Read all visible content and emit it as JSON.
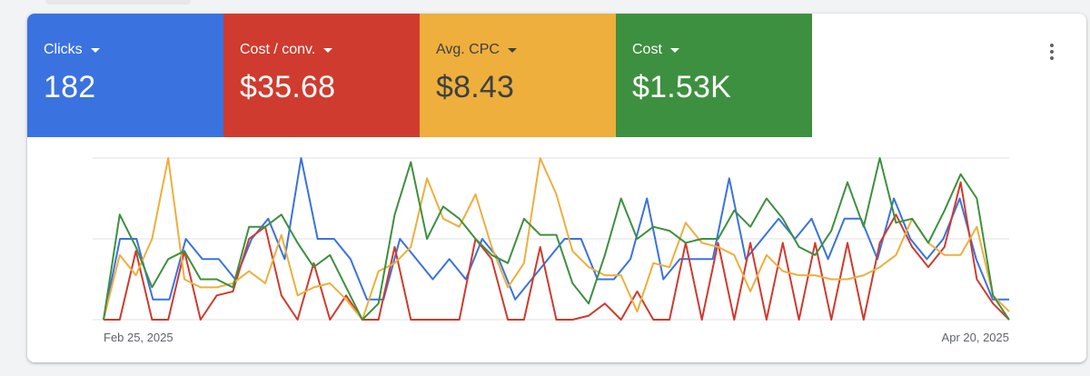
{
  "tiles": [
    {
      "label": "Clicks",
      "value": "182",
      "color": "#3a72e0"
    },
    {
      "label": "Cost / conv.",
      "value": "$35.68",
      "color": "#cf3b2e"
    },
    {
      "label": "Avg. CPC",
      "value": "$8.43",
      "color": "#eeaf3c"
    },
    {
      "label": "Cost",
      "value": "$1.53K",
      "color": "#3d903f"
    }
  ],
  "chart_data": {
    "type": "line",
    "x_start_label": "Feb 25, 2025",
    "x_end_label": "Apr 20, 2025",
    "grid": true,
    "ylim": [
      0,
      4
    ],
    "series": [
      {
        "color": "#3a72e0",
        "values": [
          0,
          2,
          2,
          0.5,
          0.5,
          2,
          1.5,
          1.5,
          1,
          2,
          2.5,
          1.5,
          4,
          2,
          2,
          1.5,
          0.5,
          0.5,
          2,
          1.5,
          1,
          1.5,
          1,
          2,
          1.5,
          0.5,
          1,
          1.5,
          2,
          2,
          1,
          1,
          1.5,
          3,
          1,
          1.5,
          1.5,
          1.5,
          3.5,
          1.5,
          2,
          2.5,
          2,
          2.5,
          1.5,
          2.5,
          2.5,
          1.5,
          3,
          2,
          1.5,
          2,
          3,
          1.5,
          0.5,
          0.5
        ]
      },
      {
        "color": "#cf3b2e",
        "values": [
          0,
          0,
          1.7,
          0,
          0,
          1.7,
          0,
          0.6,
          0.7,
          2,
          2.3,
          0.6,
          0,
          1.4,
          0,
          0.6,
          0,
          0,
          1.8,
          0,
          0,
          0,
          0,
          2,
          1.5,
          0,
          0,
          1.8,
          0,
          0,
          0.1,
          0.4,
          0,
          0.7,
          0,
          0,
          1.9,
          0,
          1.9,
          0,
          1.9,
          0,
          1.9,
          0,
          1.9,
          0,
          1.9,
          0,
          1.9,
          2.6,
          1.8,
          1.3,
          1.8,
          3.4,
          1,
          0.4,
          0
        ]
      },
      {
        "color": "#eeaf3c",
        "values": [
          0,
          1.6,
          1.1,
          2,
          4,
          1,
          0.8,
          0.8,
          0.9,
          1.2,
          0.9,
          2.1,
          0.6,
          0.8,
          0.9,
          0.5,
          0,
          1.2,
          1.4,
          1.8,
          3.5,
          2.5,
          2.3,
          3.1,
          1.8,
          0.8,
          1.4,
          4,
          3.1,
          1.7,
          1.3,
          1.1,
          1.1,
          0.2,
          1.4,
          1.3,
          2.4,
          1.9,
          1.8,
          1.6,
          0.7,
          1.6,
          1.2,
          1.1,
          1.1,
          1,
          1,
          1.1,
          1.3,
          1.6,
          2.5,
          1.9,
          1.6,
          1.6,
          2.3,
          0.6,
          0.2
        ]
      },
      {
        "color": "#3d903f",
        "values": [
          0,
          2.6,
          1.8,
          0.8,
          1.5,
          1.7,
          1,
          1,
          0.8,
          2.3,
          2.3,
          2.6,
          1.9,
          1.3,
          1.6,
          0.8,
          0,
          0.4,
          2.6,
          3.9,
          2,
          2.8,
          2.5,
          2.0,
          1.6,
          1.4,
          2.5,
          2.1,
          2.1,
          0.9,
          0.4,
          1.6,
          3,
          2,
          2.3,
          2.2,
          1.9,
          2,
          2,
          2.7,
          2.3,
          3,
          2.5,
          1.8,
          1.6,
          2.2,
          3.4,
          2.3,
          4,
          2.4,
          2.5,
          1.9,
          2.7,
          3.6,
          3,
          0.6,
          0
        ]
      }
    ]
  }
}
